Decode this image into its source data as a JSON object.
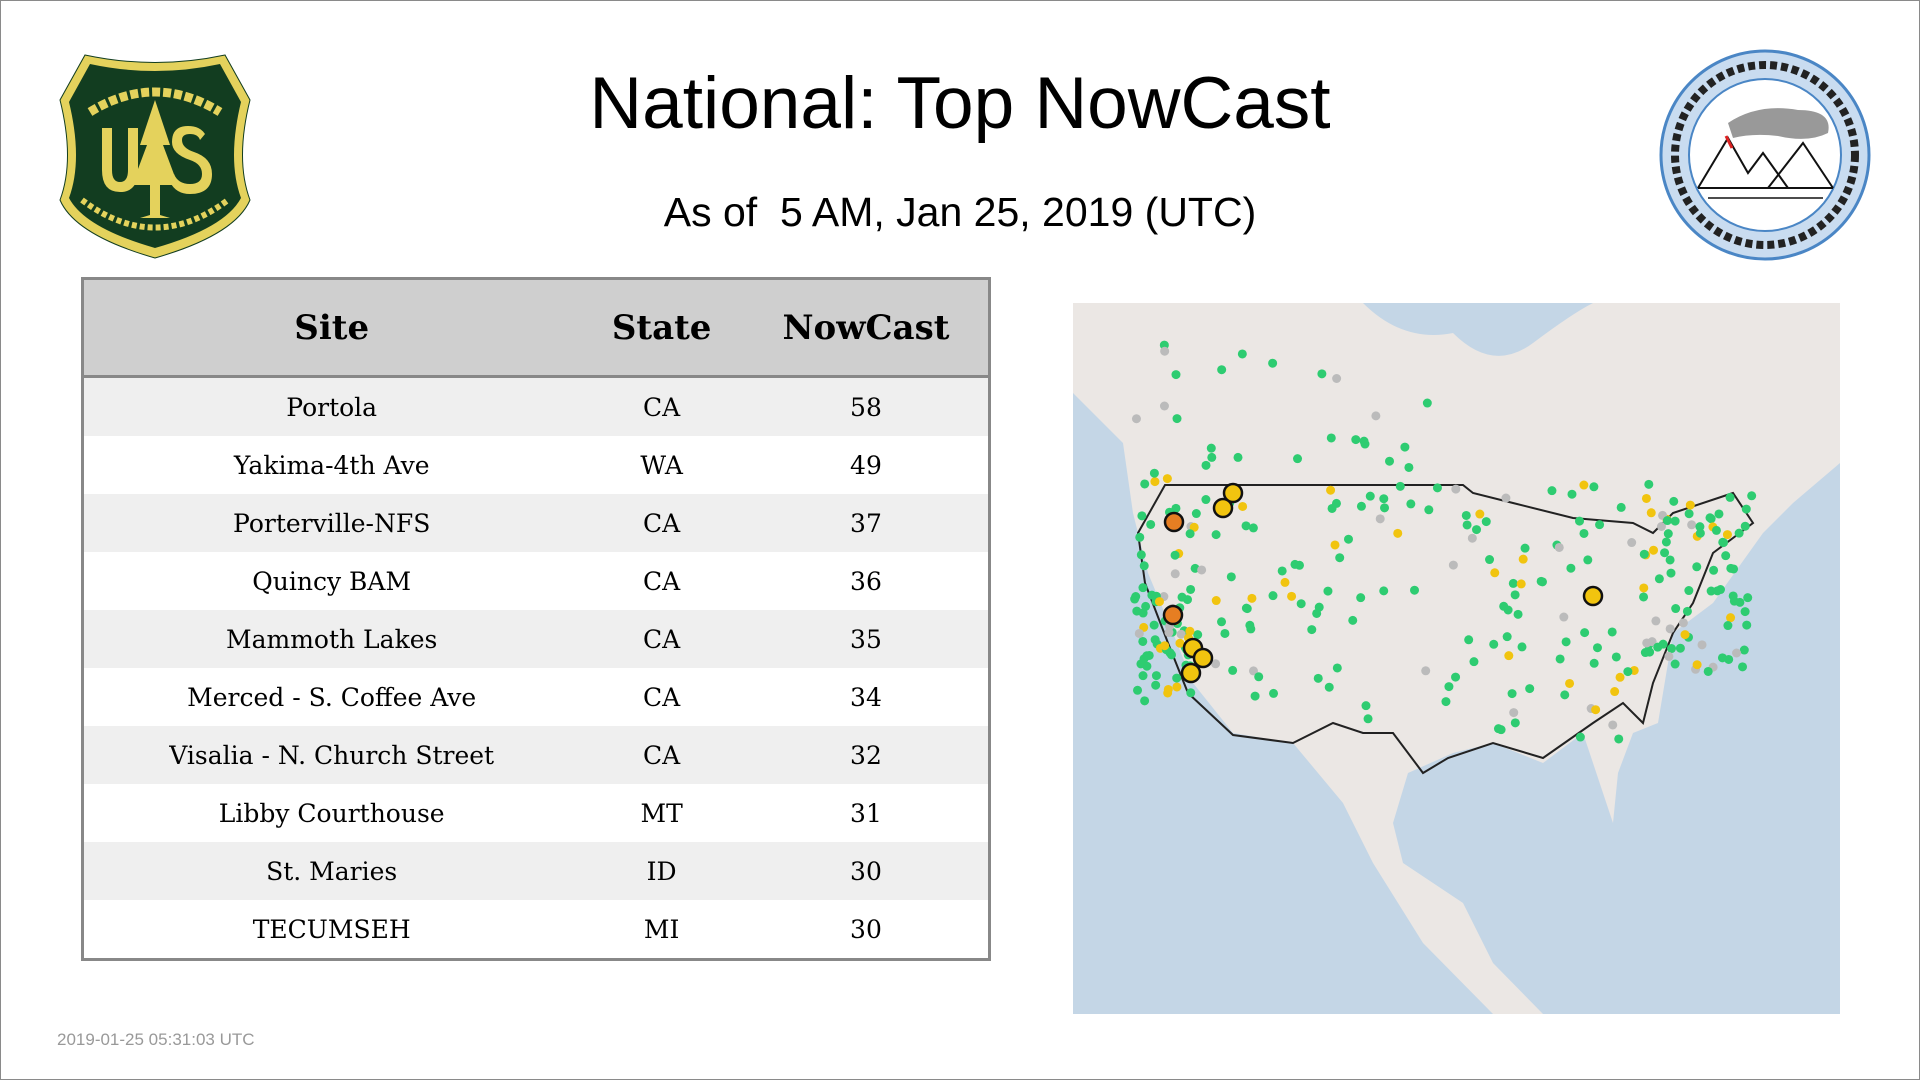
{
  "header": {
    "title": "National: Top NowCast",
    "subtitle": "As of  5 AM, Jan 25, 2019 (UTC)",
    "left_logo": {
      "name": "US Forest Service shield",
      "text_top": "FOREST SERVICE",
      "letters": "U S",
      "text_bottom": "DEPARTMENT OF AGRICULTURE",
      "colors": {
        "green": "#123d20",
        "gold": "#e4d25c"
      }
    },
    "right_logo": {
      "name": "Wildland Fire Air Quality Response Program",
      "text_top": "WILDLAND FIRE • AIR QUALITY",
      "text_bottom": "RESPONSE PROGRAM",
      "color": "#4a86c5"
    }
  },
  "table": {
    "columns": [
      "Site",
      "State",
      "NowCast"
    ],
    "rows": [
      {
        "site": "Portola",
        "state": "CA",
        "nowcast": "58"
      },
      {
        "site": "Yakima-4th Ave",
        "state": "WA",
        "nowcast": "49"
      },
      {
        "site": "Porterville-NFS",
        "state": "CA",
        "nowcast": "37"
      },
      {
        "site": "Quincy BAM",
        "state": "CA",
        "nowcast": "36"
      },
      {
        "site": "Mammoth Lakes",
        "state": "CA",
        "nowcast": "35"
      },
      {
        "site": "Merced - S. Coffee Ave",
        "state": "CA",
        "nowcast": "34"
      },
      {
        "site": "Visalia - N. Church Street",
        "state": "CA",
        "nowcast": "32"
      },
      {
        "site": "Libby Courthouse",
        "state": "MT",
        "nowcast": "31"
      },
      {
        "site": "St. Maries",
        "state": "ID",
        "nowcast": "30"
      },
      {
        "site": "TECUMSEH",
        "state": "MI",
        "nowcast": "30"
      }
    ]
  },
  "map": {
    "marker_colors": {
      "good": "#2ecc71",
      "moderate": "#f1c40f",
      "usg": "#e67e22",
      "no_data": "#bbbbbb"
    },
    "ocean_color": "#c4d6e6",
    "land_color": "#ebe7e4"
  },
  "footer": {
    "timestamp": "2019-01-25 05:31:03 UTC"
  }
}
